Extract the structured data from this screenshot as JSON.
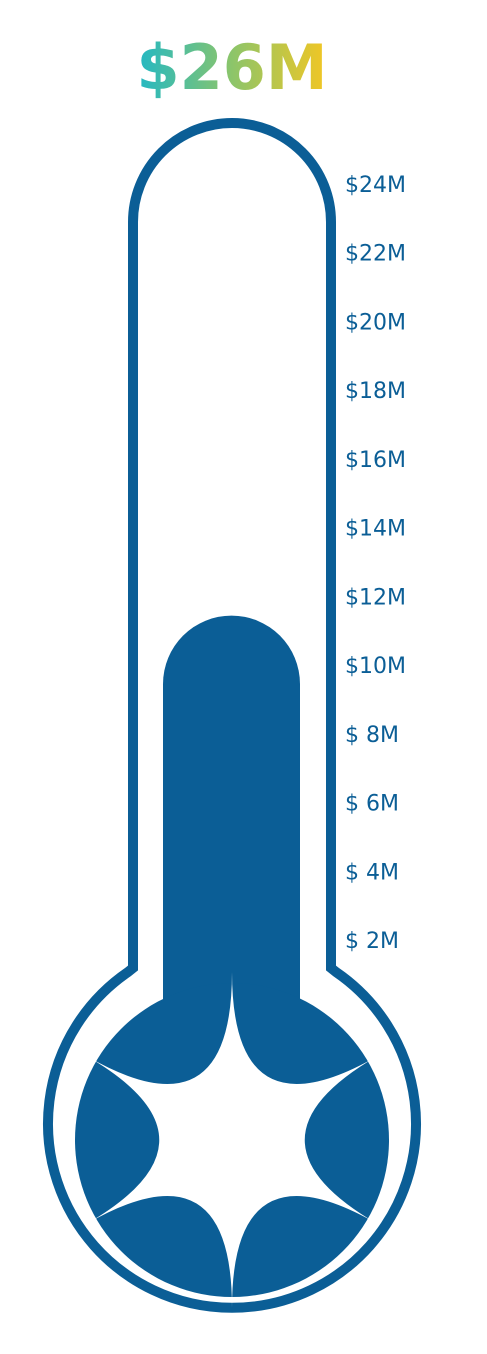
{
  "chart_data": {
    "type": "thermometer",
    "title": "$26M",
    "value": 11.5,
    "color": "#0b5e96",
    "ylim": [
      0,
      26
    ],
    "yticks": [
      {
        "value": 2,
        "label": "$ 2M"
      },
      {
        "value": 4,
        "label": "$ 4M"
      },
      {
        "value": 6,
        "label": "$ 6M"
      },
      {
        "value": 8,
        "label": "$ 8M"
      },
      {
        "value": 10,
        "label": "$10M"
      },
      {
        "value": 12,
        "label": "$12M"
      },
      {
        "value": 14,
        "label": "$14M"
      },
      {
        "value": 16,
        "label": "$16M"
      },
      {
        "value": 18,
        "label": "$18M"
      },
      {
        "value": 20,
        "label": "$20M"
      },
      {
        "value": 22,
        "label": "$22M"
      },
      {
        "value": 24,
        "label": "$24M"
      }
    ]
  }
}
